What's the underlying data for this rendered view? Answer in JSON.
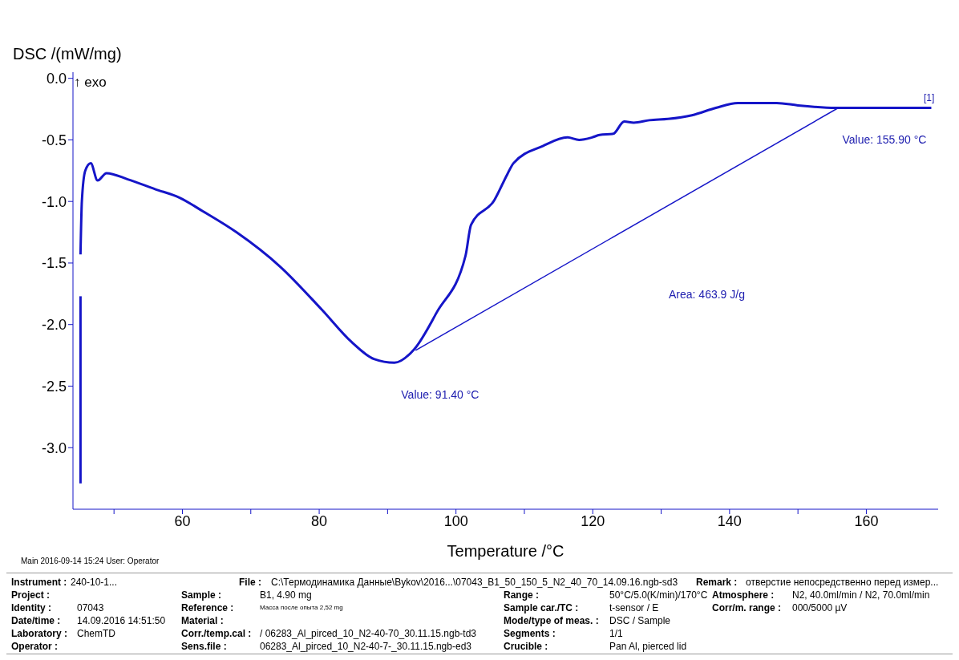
{
  "chart_data": {
    "type": "line",
    "ylabel": "DSC /(mW/mg)",
    "xlabel": "Temperature /°C",
    "xlim": [
      44,
      170.5
    ],
    "ylim": [
      -3.5,
      0.05
    ],
    "xticks": [
      {
        "value": 50,
        "label": null
      },
      60,
      {
        "value": 70,
        "label": null
      },
      80,
      {
        "value": 90,
        "label": null
      },
      100,
      {
        "value": 110,
        "label": null
      },
      120,
      {
        "value": 130,
        "label": null
      },
      140,
      {
        "value": 150,
        "label": null
      },
      160
    ],
    "yticks": [
      {
        "value": 0,
        "label": "0.0"
      },
      -0.5,
      {
        "value": -1,
        "label": "-1.0"
      },
      -1.5,
      {
        "value": -2,
        "label": "-2.0"
      },
      -2.5,
      {
        "value": -3,
        "label": "-3.0"
      }
    ],
    "grid": false,
    "legend": false,
    "marker": "none",
    "line_style": "solid",
    "series": [
      {
        "color": "#1515c8",
        "x": [
          45.1,
          45.1
        ],
        "values": [
          -3.29,
          -1.77
        ]
      },
      {
        "color": "#1515c8",
        "x": [
          45.1,
          45.3,
          45.8,
          46.6,
          47.6,
          48.9,
          52,
          56,
          59.6,
          63,
          67.9,
          74.3,
          80.4,
          84.7,
          88,
          91,
          93.9,
          97.2,
          101.4,
          102.2,
          105.6,
          107.5,
          108.4,
          112.7,
          116.3,
          118,
          119.9,
          121,
          123,
          124.6,
          126,
          128.3,
          131,
          134.5,
          138,
          141.2,
          144,
          146.9,
          150,
          155.5,
          160,
          165,
          169.5
        ],
        "values": [
          -1.43,
          -1.0,
          -0.75,
          -0.69,
          -0.83,
          -0.77,
          -0.82,
          -0.9,
          -0.97,
          -1.08,
          -1.25,
          -1.53,
          -1.88,
          -2.14,
          -2.28,
          -2.31,
          -2.2,
          -1.9,
          -1.44,
          -1.19,
          -0.99,
          -0.78,
          -0.69,
          -0.55,
          -0.48,
          -0.5,
          -0.48,
          -0.46,
          -0.45,
          -0.35,
          -0.36,
          -0.34,
          -0.33,
          -0.3,
          -0.24,
          -0.2,
          -0.2,
          -0.2,
          -0.22,
          -0.24,
          -0.24,
          -0.24,
          -0.24
        ]
      },
      {
        "color": "#1515c8",
        "x": [
          94.1,
          155.9
        ],
        "values": [
          -2.21,
          -0.24
        ]
      }
    ],
    "annotations": [
      "↑ exo",
      "[1]",
      "Area: 463.9 J/g",
      {
        "text": "Value: 91.40 °C",
        "x": 91.4,
        "y": -2.31
      },
      {
        "text": "Value: 155.90 °C",
        "x": 155.9,
        "y": -0.24
      },
      "Main   2016-09-14 15:24   User: Operator",
      "Instrument :",
      "240-10-1...",
      "File :",
      "C:\\Термодинамика Данные\\Bykov\\2016...\\07043_B1_50_150_5_N2_40_70_14.09.16.ngb-sd3",
      "Remark :",
      "отверстие непосредственно перед измер...",
      "Project :",
      "Identity :",
      "07043",
      "Date/time :",
      "14.09.2016 14:51:50",
      "Laboratory :",
      "ChemTD",
      "Operator :",
      "Sample :",
      "B1, 4.90 mg",
      "Reference :",
      "Масса после опыта 2,52 mg",
      "Material :",
      "Corr./temp.cal :",
      "/ 06283_Al_pirced_10_N2-40-70_30.11.15.ngb-td3",
      "Sens.file :",
      "06283_Al_pirced_10_N2-40-7-_30.11.15.ngb-ed3",
      "Range :",
      "50°C/5.0(K/min)/170°C",
      "Sample car./TC :",
      "t-sensor / E",
      "Mode/type of meas. :",
      "DSC / Sample",
      "Segments :",
      "1/1",
      "Crucible :",
      "Pan Al, pierced lid",
      "Atmosphere :",
      "N2, 40.0ml/min / N2, 70.0ml/min",
      "Corr/m. range :",
      "000/5000 µV"
    ]
  }
}
